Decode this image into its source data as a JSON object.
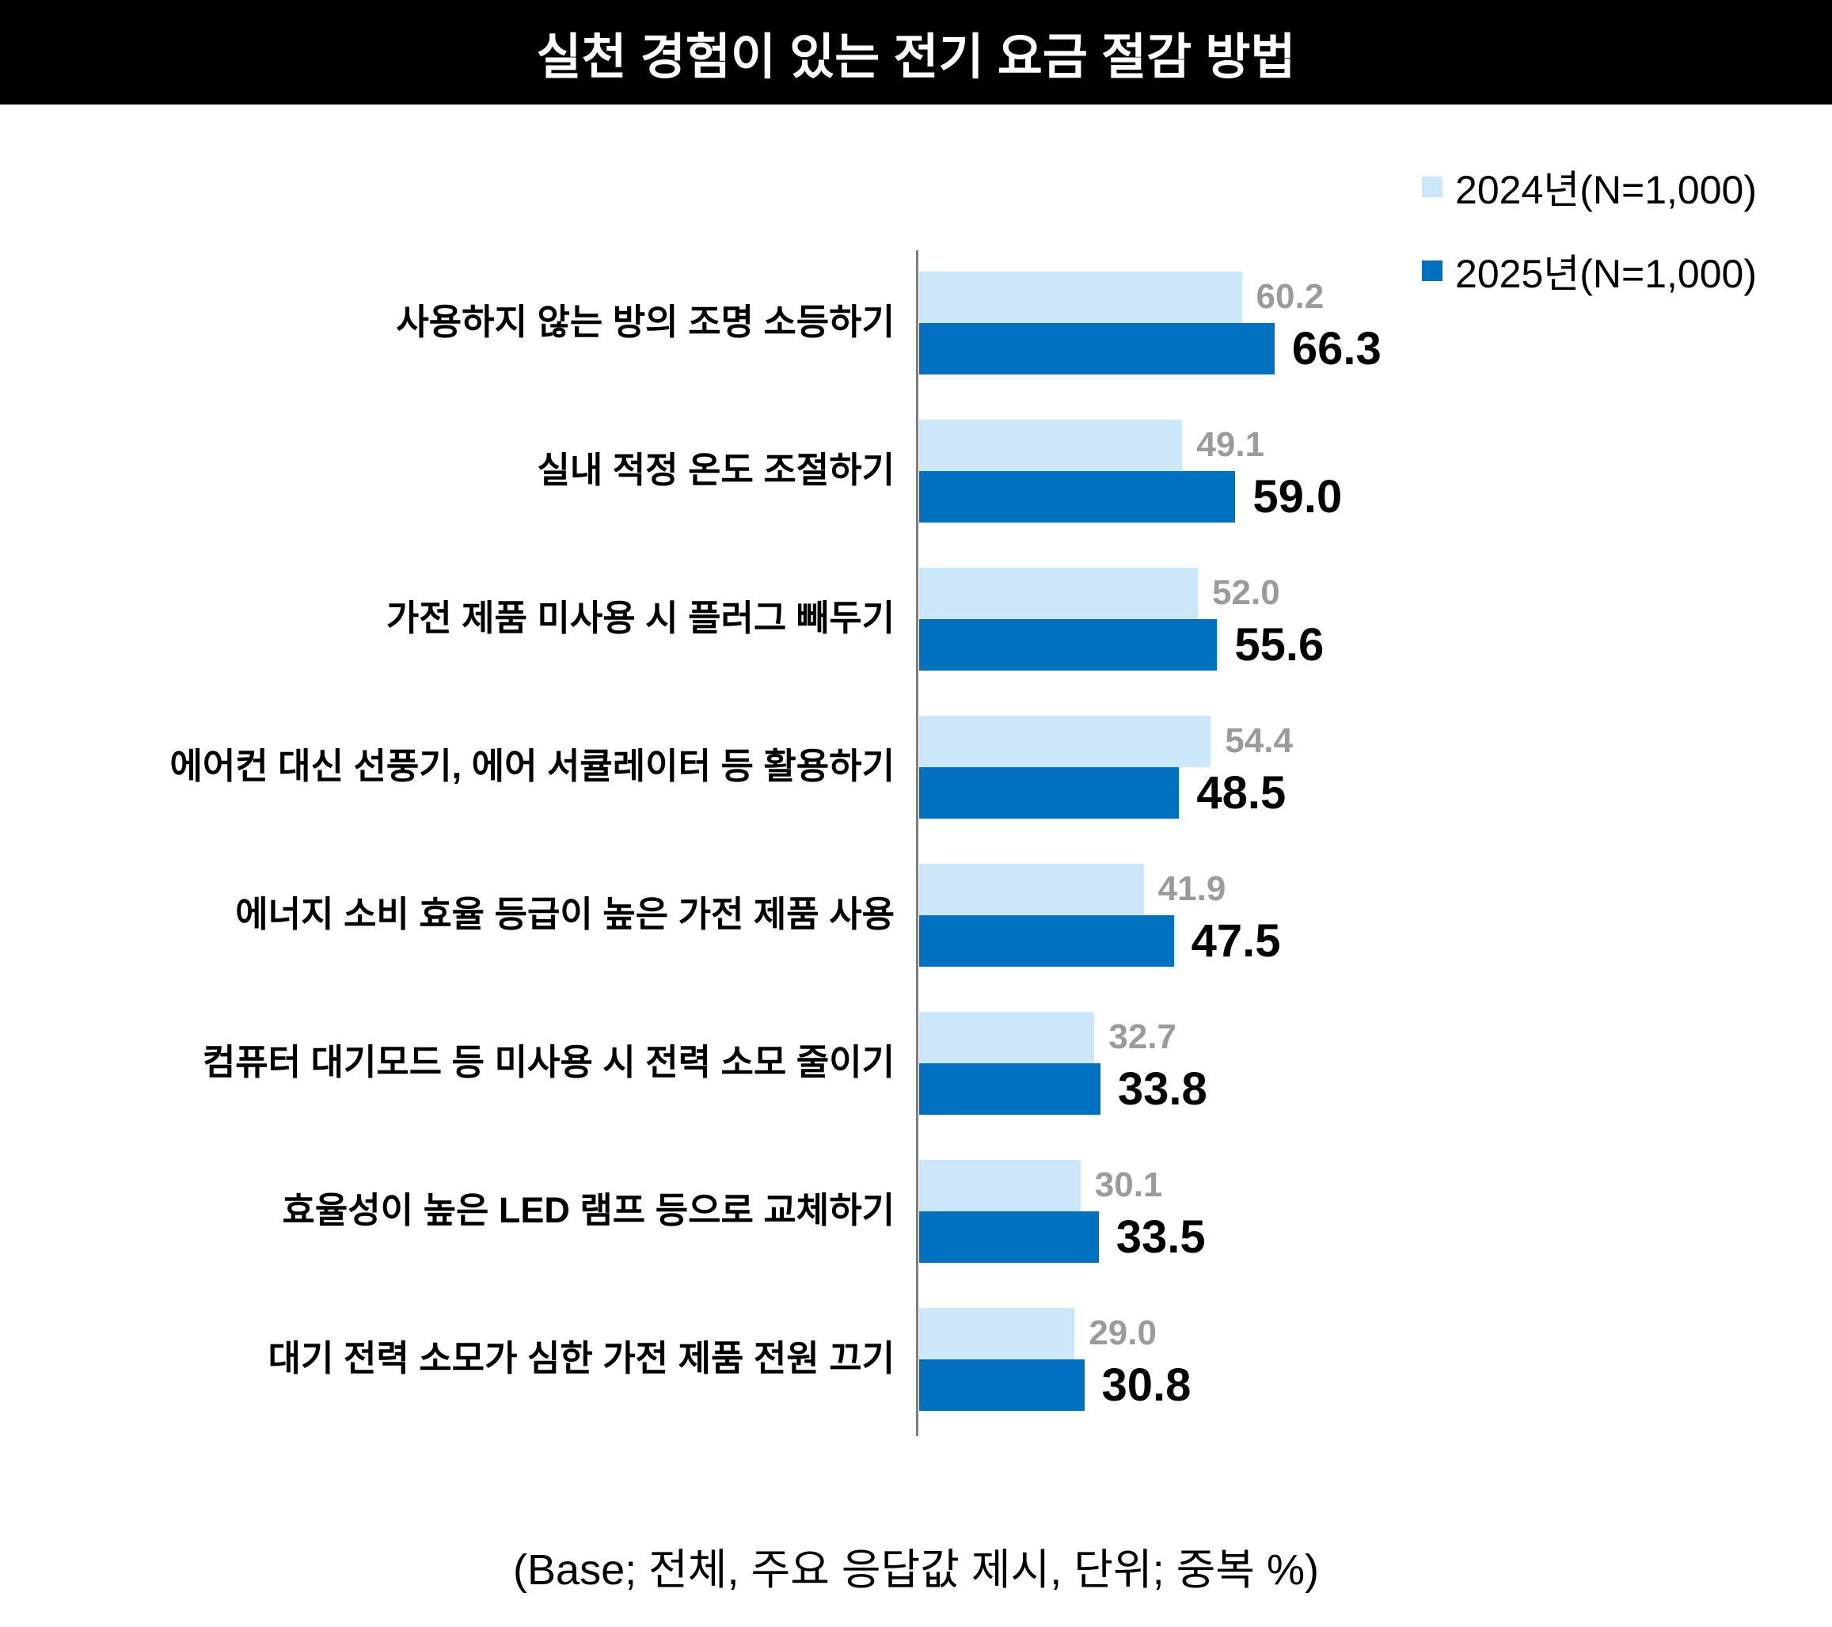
{
  "chart_data": {
    "type": "bar",
    "orientation": "horizontal",
    "title": "실천 경험이 있는 전기 요금 절감 방법",
    "note": "(Base; 전체, 주요 응답값 제시, 단위; 중복 %)",
    "categories": [
      "사용하지 않는 방의 조명 소등하기",
      "실내 적정 온도 조절하기",
      "가전 제품 미사용 시 플러그 빼두기",
      "에어컨 대신 선풍기, 에어 서큘레이터 등 활용하기",
      "에너지 소비 효율 등급이 높은 가전 제품 사용",
      "컴퓨터 대기모드 등 미사용 시 전력 소모 줄이기",
      "효율성이 높은 LED 램프 등으로 교체하기",
      "대기 전력 소모가 심한 가전 제품 전원 끄기"
    ],
    "series": [
      {
        "name": "2024년(N=1,000)",
        "color": "#CCE7FA",
        "label_color": "#9B9B9B",
        "values": [
          60.2,
          49.1,
          52.0,
          54.4,
          41.9,
          32.7,
          30.1,
          29.0
        ]
      },
      {
        "name": "2025년(N=1,000)",
        "color": "#0070C0",
        "label_color": "#000000",
        "values": [
          66.3,
          59.0,
          55.6,
          48.5,
          47.5,
          33.8,
          33.5,
          30.8
        ]
      }
    ],
    "xlim": [
      0,
      100
    ],
    "grid": false,
    "legend_position": "top-right",
    "value_labels": true
  },
  "colors": {
    "title_bg": "#000000",
    "title_fg": "#FFFFFF",
    "axis_line": "#7F7F7F"
  }
}
